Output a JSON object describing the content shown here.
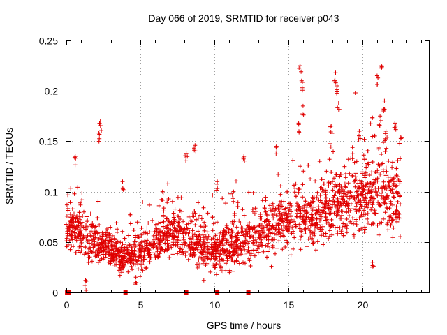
{
  "chart_data": {
    "type": "scatter",
    "title": "Day 066 of 2019, SRMTID for receiver p043",
    "xlabel": "GPS time / hours",
    "ylabel": "SRMTID / TECUs",
    "xlim": [
      0,
      24.5
    ],
    "ylim": [
      0,
      0.25
    ],
    "x_ticks": [
      0,
      5,
      10,
      15,
      20
    ],
    "y_ticks": [
      0,
      0.05,
      0.1,
      0.15,
      0.2,
      0.25
    ],
    "x_tick_labels": [
      "0",
      "5",
      "10",
      "15",
      "20"
    ],
    "y_tick_labels": [
      "0",
      "0.05",
      "0.1",
      "0.15",
      "0.2",
      "0.25"
    ],
    "grid": true,
    "marker": "plus",
    "color": "#e00000",
    "x_range_hours": [
      0.0,
      22.6
    ],
    "trend": [
      {
        "x": 0,
        "y": 0.068
      },
      {
        "x": 1,
        "y": 0.058
      },
      {
        "x": 2,
        "y": 0.05
      },
      {
        "x": 3,
        "y": 0.042
      },
      {
        "x": 4,
        "y": 0.035
      },
      {
        "x": 5,
        "y": 0.038
      },
      {
        "x": 6,
        "y": 0.05
      },
      {
        "x": 7,
        "y": 0.06
      },
      {
        "x": 8,
        "y": 0.056
      },
      {
        "x": 9,
        "y": 0.048
      },
      {
        "x": 10,
        "y": 0.042
      },
      {
        "x": 11,
        "y": 0.044
      },
      {
        "x": 12,
        "y": 0.052
      },
      {
        "x": 13,
        "y": 0.058
      },
      {
        "x": 14,
        "y": 0.065
      },
      {
        "x": 15,
        "y": 0.075
      },
      {
        "x": 16,
        "y": 0.078
      },
      {
        "x": 17,
        "y": 0.075
      },
      {
        "x": 18,
        "y": 0.085
      },
      {
        "x": 19,
        "y": 0.09
      },
      {
        "x": 20,
        "y": 0.095
      },
      {
        "x": 21,
        "y": 0.1
      },
      {
        "x": 22,
        "y": 0.095
      },
      {
        "x": 22.6,
        "y": 0.092
      }
    ],
    "spread": [
      {
        "x": 0,
        "y": 0.02
      },
      {
        "x": 4,
        "y": 0.015
      },
      {
        "x": 8,
        "y": 0.02
      },
      {
        "x": 12,
        "y": 0.02
      },
      {
        "x": 15,
        "y": 0.025
      },
      {
        "x": 18,
        "y": 0.03
      },
      {
        "x": 22.6,
        "y": 0.035
      }
    ],
    "spikes": [
      {
        "x": 0.6,
        "y": 0.135
      },
      {
        "x": 2.3,
        "y": 0.17
      },
      {
        "x": 2.2,
        "y": 0.158
      },
      {
        "x": 3.8,
        "y": 0.11
      },
      {
        "x": 6.5,
        "y": 0.1
      },
      {
        "x": 8.7,
        "y": 0.146
      },
      {
        "x": 8.1,
        "y": 0.138
      },
      {
        "x": 10.2,
        "y": 0.11
      },
      {
        "x": 11.3,
        "y": 0.1
      },
      {
        "x": 12.0,
        "y": 0.135
      },
      {
        "x": 14.2,
        "y": 0.145
      },
      {
        "x": 15.8,
        "y": 0.225
      },
      {
        "x": 15.9,
        "y": 0.21
      },
      {
        "x": 16.0,
        "y": 0.185
      },
      {
        "x": 15.7,
        "y": 0.168
      },
      {
        "x": 18.2,
        "y": 0.218
      },
      {
        "x": 18.3,
        "y": 0.205
      },
      {
        "x": 17.9,
        "y": 0.165
      },
      {
        "x": 18.4,
        "y": 0.188
      },
      {
        "x": 21.0,
        "y": 0.215
      },
      {
        "x": 21.3,
        "y": 0.225
      },
      {
        "x": 21.5,
        "y": 0.19
      },
      {
        "x": 21.2,
        "y": 0.175
      },
      {
        "x": 21.6,
        "y": 0.16
      },
      {
        "x": 22.2,
        "y": 0.168
      },
      {
        "x": 22.6,
        "y": 0.154
      },
      {
        "x": 19.8,
        "y": 0.16
      },
      {
        "x": 20.7,
        "y": 0.03
      },
      {
        "x": 1.3,
        "y": 0.012
      },
      {
        "x": 4.7,
        "y": 0.015
      }
    ],
    "zero_hours": [
      0.05,
      0.15,
      4.0,
      8.1,
      10.2,
      12.3
    ]
  }
}
